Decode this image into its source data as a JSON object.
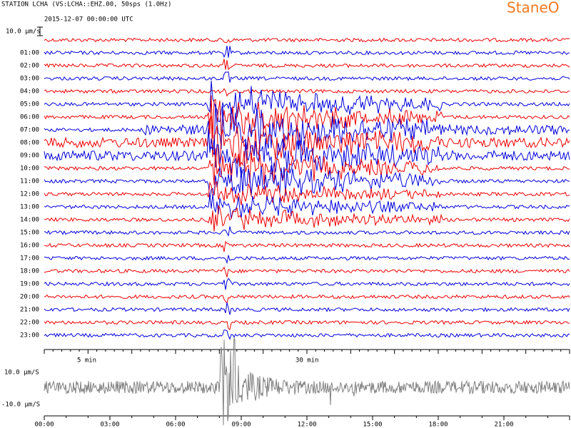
{
  "header": {
    "title": "STATION LCHA (VS:LCHA::EHZ.00, 50sps (1.0Hz)",
    "date": "2015-12-07 00:00:00 UTC",
    "logo": "StaneO"
  },
  "helicorder": {
    "scale_label": "10.0 µm/s",
    "hour_labels": [
      "01:00",
      "02:00",
      "03:00",
      "04:00",
      "05:00",
      "06:00",
      "07:00",
      "08:00",
      "09:00",
      "10:00",
      "11:00",
      "12:00",
      "13:00",
      "14:00",
      "15:00",
      "16:00",
      "17:00",
      "18:00",
      "19:00",
      "20:00",
      "21:00",
      "22:00",
      "23:00"
    ],
    "minute_labels": [
      "5 min",
      "30 min"
    ]
  },
  "overview": {
    "upper_label": "10.0 µm/S",
    "lower_label": "-10.0 µm/S",
    "time_labels": [
      "00:00",
      "03:00",
      "06:00",
      "09:00",
      "12:00",
      "15:00",
      "18:00",
      "21:00"
    ]
  }
}
